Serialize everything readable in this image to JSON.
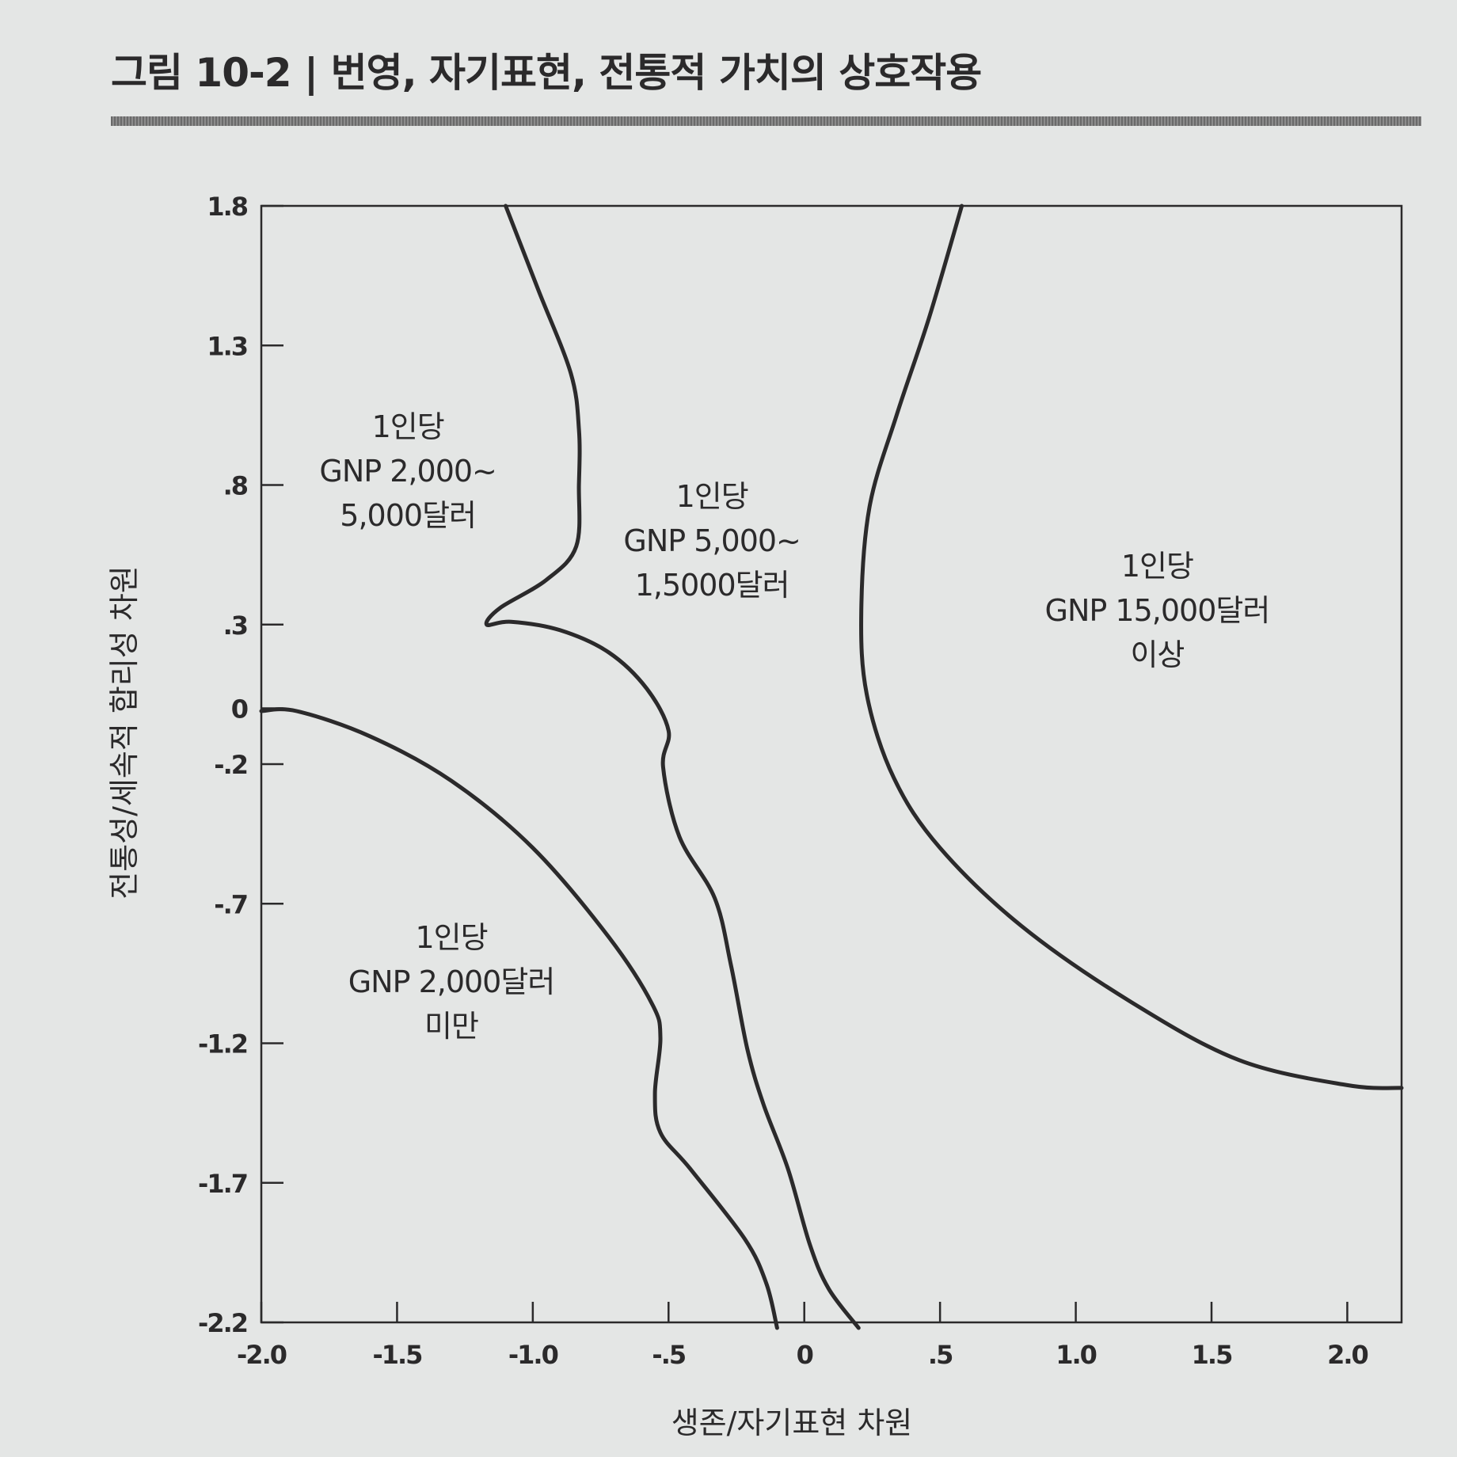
{
  "figure": {
    "title": "그림 10-2 | 번영, 자기표현, 전통적 가치의 상호작용"
  },
  "chart_data": {
    "type": "line",
    "xlabel": "생존/자기표현 차원",
    "ylabel": "전통성/세속적 합리성 차원",
    "xlim": [
      -2.0,
      2.2
    ],
    "ylim": [
      -2.2,
      1.8
    ],
    "x_ticks": [
      {
        "value": -2.0,
        "label": "-2.0"
      },
      {
        "value": -1.5,
        "label": "-1.5"
      },
      {
        "value": -1.0,
        "label": "-1.0"
      },
      {
        "value": -0.5,
        "label": "-.5"
      },
      {
        "value": 0,
        "label": "0"
      },
      {
        "value": 0.5,
        "label": ".5"
      },
      {
        "value": 1.0,
        "label": "1.0"
      },
      {
        "value": 1.5,
        "label": "1.5"
      },
      {
        "value": 2.0,
        "label": "2.0"
      }
    ],
    "y_ticks": [
      {
        "value": 1.8,
        "label": "1.8"
      },
      {
        "value": 1.3,
        "label": "1.3"
      },
      {
        "value": 0.8,
        "label": ".8"
      },
      {
        "value": 0.3,
        "label": ".3"
      },
      {
        "value": 0,
        "label": "0"
      },
      {
        "value": -0.2,
        "label": "-.2"
      },
      {
        "value": -0.7,
        "label": "-.7"
      },
      {
        "value": -1.2,
        "label": "-1.2"
      },
      {
        "value": -1.7,
        "label": "-1.7"
      },
      {
        "value": -2.2,
        "label": "-2.2"
      }
    ],
    "boundaries": [
      {
        "points": [
          [
            -2.0,
            -0.01
          ],
          [
            -1.87,
            -0.01
          ],
          [
            -1.6,
            -0.1
          ],
          [
            -1.3,
            -0.26
          ],
          [
            -1.0,
            -0.5
          ],
          [
            -0.72,
            -0.82
          ],
          [
            -0.56,
            -1.06
          ],
          [
            -0.53,
            -1.18
          ],
          [
            -0.55,
            -1.38
          ],
          [
            -0.53,
            -1.52
          ],
          [
            -0.42,
            -1.65
          ],
          [
            -0.22,
            -1.9
          ],
          [
            -0.14,
            -2.06
          ],
          [
            -0.1,
            -2.22
          ]
        ]
      },
      {
        "points": [
          [
            -1.1,
            1.8
          ],
          [
            -0.98,
            1.5
          ],
          [
            -0.86,
            1.2
          ],
          [
            -0.83,
            1.0
          ],
          [
            -0.83,
            0.8
          ],
          [
            -0.84,
            0.58
          ],
          [
            -0.95,
            0.46
          ],
          [
            -1.12,
            0.36
          ],
          [
            -1.17,
            0.3
          ],
          [
            -1.08,
            0.31
          ],
          [
            -0.9,
            0.28
          ],
          [
            -0.72,
            0.2
          ],
          [
            -0.58,
            0.07
          ],
          [
            -0.5,
            -0.08
          ],
          [
            -0.52,
            -0.21
          ],
          [
            -0.46,
            -0.46
          ],
          [
            -0.33,
            -0.68
          ],
          [
            -0.27,
            -0.92
          ],
          [
            -0.21,
            -1.22
          ],
          [
            -0.15,
            -1.42
          ],
          [
            -0.06,
            -1.65
          ],
          [
            0.02,
            -1.92
          ],
          [
            0.09,
            -2.08
          ],
          [
            0.2,
            -2.22
          ]
        ]
      },
      {
        "points": [
          [
            0.58,
            1.8
          ],
          [
            0.46,
            1.4
          ],
          [
            0.34,
            1.05
          ],
          [
            0.24,
            0.72
          ],
          [
            0.21,
            0.35
          ],
          [
            0.23,
            0.05
          ],
          [
            0.33,
            -0.25
          ],
          [
            0.5,
            -0.5
          ],
          [
            0.8,
            -0.78
          ],
          [
            1.2,
            -1.05
          ],
          [
            1.6,
            -1.26
          ],
          [
            2.0,
            -1.35
          ],
          [
            2.2,
            -1.36
          ]
        ]
      }
    ],
    "region_labels": [
      {
        "x": -1.46,
        "y": 0.85,
        "lines": [
          "1인당",
          "GNP 2,000~",
          "5,000달러"
        ]
      },
      {
        "x": -0.34,
        "y": 0.6,
        "lines": [
          "1인당",
          "GNP 5,000~",
          "1,5000달러"
        ]
      },
      {
        "x": 1.3,
        "y": 0.35,
        "lines": [
          "1인당",
          "GNP 15,000달러",
          "이상"
        ]
      },
      {
        "x": -1.3,
        "y": -0.98,
        "lines": [
          "1인당",
          "GNP 2,000달러",
          "미만"
        ]
      }
    ]
  }
}
